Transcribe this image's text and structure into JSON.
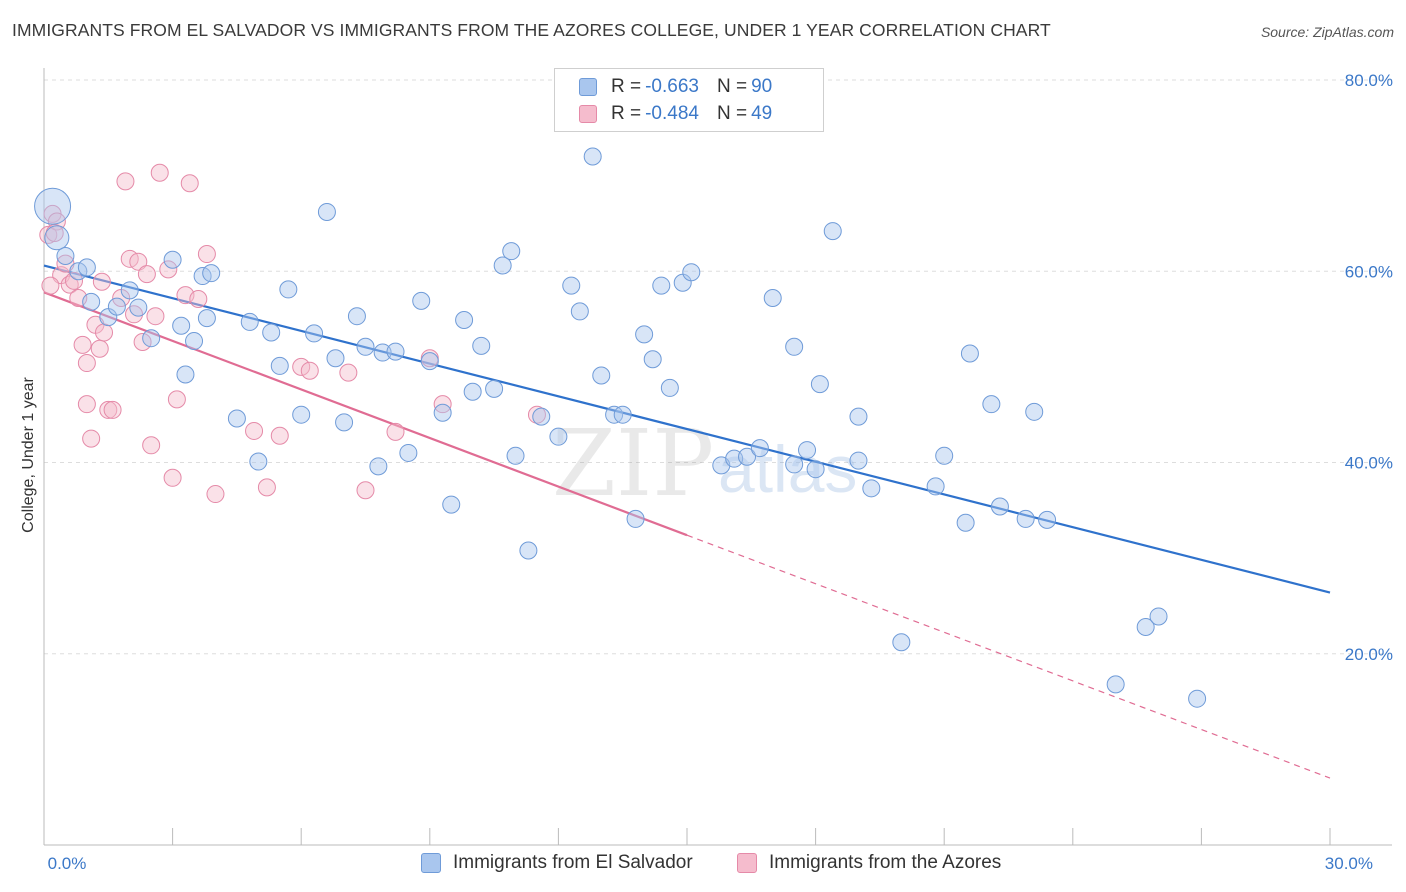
{
  "title": "IMMIGRANTS FROM EL SALVADOR VS IMMIGRANTS FROM THE AZORES COLLEGE, UNDER 1 YEAR CORRELATION CHART",
  "source": "Source: ZipAtlas.com",
  "watermark": {
    "zip": "ZIP",
    "atlas": "atlas"
  },
  "legend": {
    "rows": [
      {
        "r_label": "R = ",
        "r_value": "-0.663",
        "n_label": "N = ",
        "n_value": "90"
      },
      {
        "r_label": "R = ",
        "r_value": "-0.484",
        "n_label": "N = ",
        "n_value": "49"
      }
    ]
  },
  "bottom_legend": {
    "series1": "Immigrants from El Salvador",
    "series2": "Immigrants from the Azores"
  },
  "colors": {
    "blue_fill": "#a9c6ee",
    "blue_stroke": "#6f9bd8",
    "blue_line": "#2f72cc",
    "pink_fill": "#f5bccd",
    "pink_stroke": "#e58aa8",
    "pink_line": "#e06c93",
    "grid": "#dddddd",
    "axis_text": "#3b78c8"
  },
  "chart_data": {
    "type": "scatter",
    "title": "IMMIGRANTS FROM EL SALVADOR VS IMMIGRANTS FROM THE AZORES COLLEGE, UNDER 1 YEAR CORRELATION CHART",
    "xlabel": "",
    "ylabel": "College, Under 1 year",
    "xlim": [
      0,
      30
    ],
    "ylim": [
      0,
      80
    ],
    "x_tick_labels": [
      "0.0%",
      "30.0%"
    ],
    "y_tick_labels": [
      "20.0%",
      "40.0%",
      "60.0%",
      "80.0%"
    ],
    "y_ticks": [
      20,
      40,
      60,
      80
    ],
    "grid": true,
    "legend_position": "top-center",
    "series": [
      {
        "name": "Immigrants from El Salvador",
        "color": "#a9c6ee",
        "points": [
          [
            0.2,
            66.8
          ],
          [
            0.3,
            63.5
          ],
          [
            0.5,
            61.6
          ],
          [
            0.8,
            60.0
          ],
          [
            1.0,
            60.4
          ],
          [
            1.1,
            56.8
          ],
          [
            1.5,
            55.2
          ],
          [
            1.7,
            56.3
          ],
          [
            2.0,
            58.0
          ],
          [
            2.2,
            56.2
          ],
          [
            2.5,
            53.0
          ],
          [
            3.0,
            61.2
          ],
          [
            3.2,
            54.3
          ],
          [
            3.3,
            49.2
          ],
          [
            3.5,
            52.7
          ],
          [
            3.7,
            59.5
          ],
          [
            3.8,
            55.1
          ],
          [
            3.9,
            59.8
          ],
          [
            4.5,
            44.6
          ],
          [
            4.8,
            54.7
          ],
          [
            5.0,
            40.1
          ],
          [
            5.3,
            53.6
          ],
          [
            5.5,
            50.1
          ],
          [
            5.7,
            58.1
          ],
          [
            6.0,
            45.0
          ],
          [
            6.3,
            53.5
          ],
          [
            6.6,
            66.2
          ],
          [
            6.8,
            50.9
          ],
          [
            7.0,
            44.2
          ],
          [
            7.3,
            55.3
          ],
          [
            7.5,
            52.1
          ],
          [
            7.8,
            39.6
          ],
          [
            7.9,
            51.5
          ],
          [
            8.2,
            51.6
          ],
          [
            8.5,
            41.0
          ],
          [
            8.8,
            56.9
          ],
          [
            9.0,
            50.6
          ],
          [
            9.3,
            45.2
          ],
          [
            9.5,
            35.6
          ],
          [
            9.8,
            54.9
          ],
          [
            10.0,
            47.4
          ],
          [
            10.2,
            52.2
          ],
          [
            10.5,
            47.7
          ],
          [
            10.7,
            60.6
          ],
          [
            10.9,
            62.1
          ],
          [
            11.0,
            40.7
          ],
          [
            11.3,
            30.8
          ],
          [
            11.6,
            44.8
          ],
          [
            12.0,
            42.7
          ],
          [
            12.3,
            58.5
          ],
          [
            12.5,
            55.8
          ],
          [
            12.8,
            72.0
          ],
          [
            13.0,
            49.1
          ],
          [
            13.3,
            45.0
          ],
          [
            13.5,
            45.0
          ],
          [
            13.8,
            34.1
          ],
          [
            14.0,
            53.4
          ],
          [
            14.2,
            50.8
          ],
          [
            14.4,
            58.5
          ],
          [
            14.6,
            47.8
          ],
          [
            14.9,
            58.8
          ],
          [
            15.1,
            59.9
          ],
          [
            15.8,
            39.7
          ],
          [
            16.1,
            40.4
          ],
          [
            16.4,
            40.6
          ],
          [
            16.7,
            41.5
          ],
          [
            17.0,
            57.2
          ],
          [
            17.5,
            52.1
          ],
          [
            17.8,
            41.3
          ],
          [
            18.0,
            39.3
          ],
          [
            18.1,
            48.2
          ],
          [
            18.4,
            64.2
          ],
          [
            19.0,
            44.8
          ],
          [
            19.3,
            37.3
          ],
          [
            20.0,
            21.2
          ],
          [
            20.8,
            37.5
          ],
          [
            21.0,
            40.7
          ],
          [
            21.5,
            33.7
          ],
          [
            21.6,
            51.4
          ],
          [
            22.1,
            46.1
          ],
          [
            22.3,
            35.4
          ],
          [
            22.9,
            34.1
          ],
          [
            23.1,
            45.3
          ],
          [
            23.4,
            34.0
          ],
          [
            25.0,
            16.8
          ],
          [
            25.7,
            22.8
          ],
          [
            26.0,
            23.9
          ],
          [
            26.9,
            15.3
          ],
          [
            17.5,
            39.8
          ],
          [
            19.0,
            40.2
          ]
        ],
        "trend": {
          "x": [
            0,
            30
          ],
          "y": [
            60.6,
            26.4
          ]
        }
      },
      {
        "name": "Immigrants from the Azores",
        "color": "#f5bccd",
        "points": [
          [
            0.1,
            63.8
          ],
          [
            0.2,
            66.0
          ],
          [
            0.3,
            65.2
          ],
          [
            0.4,
            59.6
          ],
          [
            0.5,
            60.8
          ],
          [
            0.6,
            58.6
          ],
          [
            0.7,
            59.0
          ],
          [
            0.8,
            57.2
          ],
          [
            0.9,
            52.3
          ],
          [
            1.0,
            50.4
          ],
          [
            1.0,
            46.1
          ],
          [
            1.1,
            42.5
          ],
          [
            1.2,
            54.4
          ],
          [
            1.3,
            51.9
          ],
          [
            1.4,
            53.6
          ],
          [
            1.5,
            45.5
          ],
          [
            1.6,
            45.5
          ],
          [
            1.8,
            57.2
          ],
          [
            1.9,
            69.4
          ],
          [
            2.0,
            61.3
          ],
          [
            2.1,
            55.5
          ],
          [
            2.2,
            61.0
          ],
          [
            2.3,
            52.6
          ],
          [
            2.4,
            59.7
          ],
          [
            2.5,
            41.8
          ],
          [
            2.6,
            55.3
          ],
          [
            2.7,
            70.3
          ],
          [
            2.9,
            60.2
          ],
          [
            3.0,
            38.4
          ],
          [
            3.1,
            46.6
          ],
          [
            3.3,
            57.5
          ],
          [
            3.4,
            69.2
          ],
          [
            3.6,
            57.1
          ],
          [
            3.8,
            61.8
          ],
          [
            4.0,
            36.7
          ],
          [
            4.9,
            43.3
          ],
          [
            5.2,
            37.4
          ],
          [
            5.5,
            42.8
          ],
          [
            6.0,
            50.0
          ],
          [
            6.2,
            49.6
          ],
          [
            7.1,
            49.4
          ],
          [
            7.5,
            37.1
          ],
          [
            8.2,
            43.2
          ],
          [
            9.0,
            50.9
          ],
          [
            9.3,
            46.1
          ],
          [
            11.5,
            45.0
          ],
          [
            0.15,
            58.5
          ],
          [
            1.35,
            58.9
          ],
          [
            0.25,
            64.0
          ]
        ],
        "trend": {
          "x": [
            0,
            15
          ],
          "y": [
            57.8,
            32.4
          ]
        },
        "trend_extension": {
          "x": [
            15,
            30
          ],
          "y": [
            32.4,
            7.0
          ]
        }
      }
    ]
  }
}
